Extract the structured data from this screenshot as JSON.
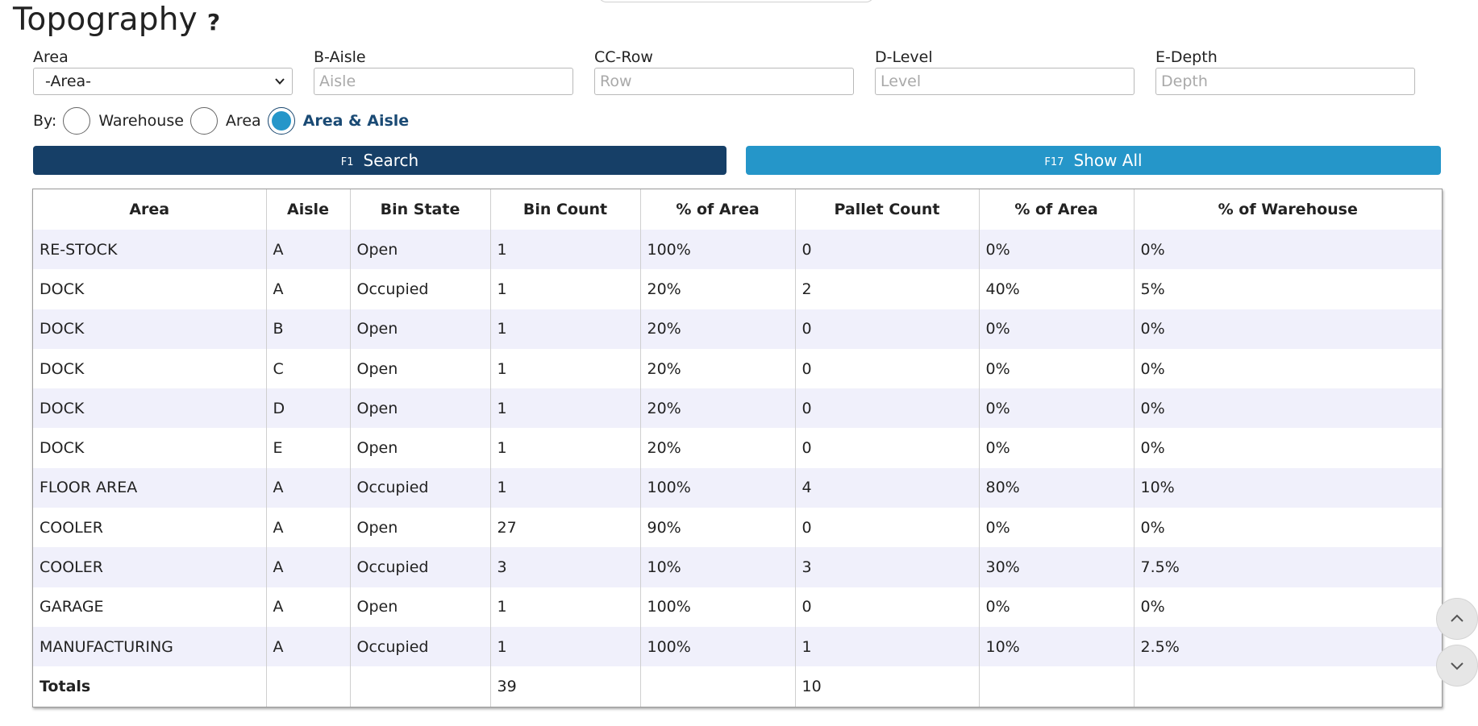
{
  "page": {
    "title": "Topography",
    "help_glyph": "?"
  },
  "filters": {
    "area": {
      "label": "Area",
      "value": "-Area-"
    },
    "aisle": {
      "label": "B-Aisle",
      "placeholder": "Aisle"
    },
    "row": {
      "label": "CC-Row",
      "placeholder": "Row"
    },
    "level": {
      "label": "D-Level",
      "placeholder": "Level"
    },
    "depth": {
      "label": "E-Depth",
      "placeholder": "Depth"
    }
  },
  "group_by": {
    "label": "By:",
    "options": [
      "Warehouse",
      "Area",
      "Area & Aisle"
    ],
    "selected": "Area & Aisle"
  },
  "buttons": {
    "search": {
      "key": "F1",
      "label": "Search",
      "color": "#163f67"
    },
    "show_all": {
      "key": "F17",
      "label": "Show All",
      "color": "#2596c9"
    }
  },
  "table": {
    "columns": [
      "Area",
      "Aisle",
      "Bin State",
      "Bin Count",
      "% of Area",
      "Pallet Count",
      "% of Area",
      "% of Warehouse"
    ],
    "rows": [
      [
        "RE-STOCK",
        "A",
        "Open",
        "1",
        "100%",
        "0",
        "0%",
        "0%"
      ],
      [
        "DOCK",
        "A",
        "Occupied",
        "1",
        "20%",
        "2",
        "40%",
        "5%"
      ],
      [
        "DOCK",
        "B",
        "Open",
        "1",
        "20%",
        "0",
        "0%",
        "0%"
      ],
      [
        "DOCK",
        "C",
        "Open",
        "1",
        "20%",
        "0",
        "0%",
        "0%"
      ],
      [
        "DOCK",
        "D",
        "Open",
        "1",
        "20%",
        "0",
        "0%",
        "0%"
      ],
      [
        "DOCK",
        "E",
        "Open",
        "1",
        "20%",
        "0",
        "0%",
        "0%"
      ],
      [
        "FLOOR AREA",
        "A",
        "Occupied",
        "1",
        "100%",
        "4",
        "80%",
        "10%"
      ],
      [
        "COOLER",
        "A",
        "Open",
        "27",
        "90%",
        "0",
        "0%",
        "0%"
      ],
      [
        "COOLER",
        "A",
        "Occupied",
        "3",
        "10%",
        "3",
        "30%",
        "7.5%"
      ],
      [
        "GARAGE",
        "A",
        "Open",
        "1",
        "100%",
        "0",
        "0%",
        "0%"
      ],
      [
        "MANUFACTURING",
        "A",
        "Occupied",
        "1",
        "100%",
        "1",
        "10%",
        "2.5%"
      ]
    ],
    "totals": {
      "label": "Totals",
      "bin_count": "39",
      "pallet_count": "10"
    }
  },
  "scroll": {
    "up_icon": "chevron-up-icon",
    "down_icon": "chevron-down-icon"
  }
}
